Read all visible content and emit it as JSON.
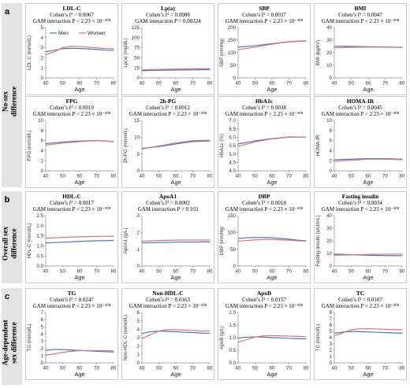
{
  "colors": {
    "men": "#4c79b5",
    "women": "#d9747a",
    "frame": "#bfbfbf",
    "band": "#e3e3e3"
  },
  "legend": {
    "men": "Men",
    "women": "Women"
  },
  "sections": [
    {
      "letter": "a",
      "label_lines": [
        "No-sex",
        "difference"
      ]
    },
    {
      "letter": "b",
      "label_lines": [
        "Overall sex",
        "difference"
      ]
    },
    {
      "letter": "c",
      "label_lines": [
        "Age-dependent",
        "sex difference"
      ]
    }
  ],
  "chart_data": [
    {
      "type": "line",
      "title": "LDL-C",
      "stat1": "Cohen’s f² = 0.0067",
      "stat2": "GAM interaction P < 2.23 × 10⁻³⁰⁸",
      "ylabel": "LDL-C (mmol/L)",
      "xlabel": "Age",
      "xlim": [
        40,
        80
      ],
      "xticks": [
        40,
        50,
        60,
        70,
        80
      ],
      "ylim": [
        0,
        5
      ],
      "yticks": [
        0,
        1,
        2,
        3,
        4,
        5
      ],
      "legend": "top-left",
      "series": [
        {
          "name": "Men",
          "x": [
            40,
            45,
            50,
            55,
            60,
            65,
            70,
            75,
            80
          ],
          "y": [
            2.6,
            2.75,
            2.9,
            2.95,
            2.93,
            2.88,
            2.82,
            2.76,
            2.72
          ]
        },
        {
          "name": "Women",
          "x": [
            40,
            45,
            50,
            55,
            60,
            65,
            70,
            75,
            80
          ],
          "y": [
            2.3,
            2.6,
            3.0,
            3.15,
            3.12,
            3.05,
            2.98,
            2.92,
            2.9
          ]
        }
      ]
    },
    {
      "type": "line",
      "title": "Lp(a)",
      "stat1": "Cohen’s f² = 0.0008",
      "stat2": "GAM interaction P = 0.00324",
      "ylabel": "Lp(a) (mg/dL)",
      "xlabel": "Age",
      "xlim": [
        40,
        80
      ],
      "xticks": [
        40,
        50,
        60,
        70,
        80
      ],
      "ylim": [
        0,
        125
      ],
      "yticks": [
        0,
        25,
        50,
        75,
        100,
        125
      ],
      "series": [
        {
          "name": "Men",
          "x": [
            40,
            50,
            60,
            70,
            80
          ],
          "y": [
            18,
            19,
            19.5,
            20,
            20.5
          ]
        },
        {
          "name": "Women",
          "x": [
            40,
            50,
            60,
            70,
            80
          ],
          "y": [
            20,
            21,
            22,
            22.5,
            23
          ]
        }
      ]
    },
    {
      "type": "line",
      "title": "SBP",
      "stat1": "Cohen’s f² = 0.0037",
      "stat2": "GAM interaction P < 2.23 × 10⁻³⁰⁸",
      "ylabel": "SBP (mmHg)",
      "xlabel": "Age",
      "xlim": [
        40,
        80
      ],
      "xticks": [
        40,
        50,
        60,
        70,
        80
      ],
      "ylim": [
        0,
        200
      ],
      "yticks": [
        0,
        50,
        100,
        150,
        200
      ],
      "series": [
        {
          "name": "Men",
          "x": [
            40,
            45,
            50,
            55,
            60,
            65,
            70,
            75,
            80
          ],
          "y": [
            122,
            125,
            128,
            132,
            136,
            140,
            144,
            146,
            147
          ]
        },
        {
          "name": "Women",
          "x": [
            40,
            45,
            50,
            55,
            60,
            65,
            70,
            75,
            80
          ],
          "y": [
            112,
            117,
            122,
            128,
            134,
            139,
            143,
            145,
            146
          ]
        }
      ]
    },
    {
      "type": "line",
      "title": "BMI",
      "stat1": "Cohen’s f² = 0.0047",
      "stat2": "GAM interaction P < 2.23 × 10⁻³⁰⁸",
      "ylabel": "BMI (kg/m²)",
      "xlabel": "Age",
      "xlim": [
        40,
        80
      ],
      "xticks": [
        40,
        50,
        60,
        70,
        80
      ],
      "ylim": [
        0,
        40
      ],
      "yticks": [
        0,
        10,
        20,
        30,
        40
      ],
      "series": [
        {
          "name": "Men",
          "x": [
            40,
            50,
            60,
            70,
            80
          ],
          "y": [
            25.2,
            25,
            24.8,
            24.6,
            24.3
          ]
        },
        {
          "name": "Women",
          "x": [
            40,
            50,
            60,
            70,
            80
          ],
          "y": [
            24,
            24.3,
            24.5,
            24.4,
            24.2
          ]
        }
      ]
    },
    {
      "type": "line",
      "title": "FPG",
      "stat1": "Cohen’s f² = 0.0019",
      "stat2": "GAM interaction P < 2.23 × 10⁻³⁰⁸",
      "ylabel": "FPG (mmol/L)",
      "xlabel": "Age",
      "xlim": [
        40,
        80
      ],
      "xticks": [
        40,
        50,
        60,
        70,
        80
      ],
      "ylim": [
        0,
        10
      ],
      "yticks": [
        0,
        2,
        4,
        6,
        8,
        10
      ],
      "series": [
        {
          "name": "Men",
          "x": [
            40,
            50,
            60,
            70,
            80
          ],
          "y": [
            5.4,
            5.7,
            5.9,
            6.0,
            5.8
          ]
        },
        {
          "name": "Women",
          "x": [
            40,
            50,
            60,
            70,
            80
          ],
          "y": [
            5.1,
            5.5,
            5.8,
            6.0,
            5.8
          ]
        }
      ]
    },
    {
      "type": "line",
      "title": "2h-PG",
      "stat1": "Cohen’s f² = 0.0012",
      "stat2": "GAM interaction P < 2.23 × 10⁻³⁰⁸",
      "ylabel": "2h-PG (mmol/L)",
      "xlabel": "Age",
      "xlim": [
        40,
        80
      ],
      "xticks": [
        40,
        50,
        60,
        70,
        80
      ],
      "ylim": [
        0,
        15
      ],
      "yticks": [
        0,
        5,
        10,
        15
      ],
      "series": [
        {
          "name": "Men",
          "x": [
            40,
            50,
            60,
            70,
            80
          ],
          "y": [
            6.7,
            7.2,
            8.0,
            8.7,
            8.9
          ]
        },
        {
          "name": "Women",
          "x": [
            40,
            50,
            60,
            70,
            80
          ],
          "y": [
            6.5,
            7.4,
            8.3,
            9.0,
            9.1
          ]
        }
      ]
    },
    {
      "type": "line",
      "title": "HbA1c",
      "stat1": "Cohen’s f² = 0.0038",
      "stat2": "GAM interaction P < 2.23 × 10⁻³⁰⁸",
      "ylabel": "HbA1c (%)",
      "xlabel": "Age",
      "xlim": [
        40,
        80
      ],
      "xticks": [
        40,
        50,
        60,
        70,
        80
      ],
      "ylim": [
        4.0,
        7.0
      ],
      "yticks": [
        4.0,
        4.5,
        5.0,
        5.5,
        6.0,
        6.5,
        7.0
      ],
      "series": [
        {
          "name": "Men",
          "x": [
            40,
            50,
            60,
            70,
            80
          ],
          "y": [
            5.6,
            5.78,
            5.92,
            6.02,
            6.0
          ]
        },
        {
          "name": "Women",
          "x": [
            40,
            50,
            60,
            70,
            80
          ],
          "y": [
            5.45,
            5.72,
            5.9,
            6.0,
            6.0
          ]
        }
      ]
    },
    {
      "type": "line",
      "title": "HOMA-IR",
      "stat1": "Cohen’s f² = 0.0045",
      "stat2": "GAM interaction P < 2.23 × 10⁻³⁰⁸",
      "ylabel": "HOMA-IR",
      "xlabel": "Age",
      "xlim": [
        40,
        80
      ],
      "xticks": [
        40,
        50,
        60,
        70,
        80
      ],
      "ylim": [
        0,
        10
      ],
      "yticks": [
        0,
        2,
        4,
        6,
        8,
        10
      ],
      "series": [
        {
          "name": "Men",
          "x": [
            40,
            50,
            60,
            70,
            80
          ],
          "y": [
            2.2,
            2.3,
            2.4,
            2.4,
            2.3
          ]
        },
        {
          "name": "Women",
          "x": [
            40,
            50,
            60,
            70,
            80
          ],
          "y": [
            1.9,
            2.1,
            2.3,
            2.3,
            2.2
          ]
        }
      ]
    },
    {
      "type": "line",
      "title": "HDL-C",
      "stat1": "Cohen’s f² = 0.0017",
      "stat2": "GAM interaction P < 2.23 × 10⁻³⁰⁸",
      "ylabel": "HDL-C (mmol/L)",
      "xlabel": "Age",
      "xlim": [
        40,
        80
      ],
      "xticks": [
        40,
        50,
        60,
        70,
        80
      ],
      "ylim": [
        0,
        2.5
      ],
      "yticks": [
        0,
        0.5,
        1.0,
        1.5,
        2.0,
        2.5
      ],
      "series": [
        {
          "name": "Men",
          "x": [
            40,
            50,
            60,
            70,
            80
          ],
          "y": [
            1.15,
            1.18,
            1.22,
            1.25,
            1.27
          ]
        },
        {
          "name": "Women",
          "x": [
            40,
            50,
            60,
            70,
            80
          ],
          "y": [
            1.38,
            1.42,
            1.45,
            1.47,
            1.48
          ]
        }
      ]
    },
    {
      "type": "line",
      "title": "ApoA1",
      "stat1": "Cohen’s f² = 0.0002",
      "stat2": "GAM interaction P = 0.103",
      "ylabel": "ApoA1 (g/L)",
      "xlabel": "Age",
      "xlim": [
        40,
        80
      ],
      "xticks": [
        40,
        50,
        60,
        70,
        80
      ],
      "ylim": [
        0,
        3
      ],
      "yticks": [
        0,
        1,
        2,
        3
      ],
      "series": [
        {
          "name": "Men",
          "x": [
            40,
            50,
            60,
            70,
            80
          ],
          "y": [
            1.38,
            1.4,
            1.42,
            1.43,
            1.44
          ]
        },
        {
          "name": "Women",
          "x": [
            40,
            50,
            60,
            70,
            80
          ],
          "y": [
            1.48,
            1.52,
            1.54,
            1.55,
            1.55
          ]
        }
      ]
    },
    {
      "type": "line",
      "title": "DBP",
      "stat1": "Cohen’s f² = 0.0018",
      "stat2": "GAM interaction P < 2.23 × 10⁻³⁰⁸",
      "ylabel": "DBP (mmHg)",
      "xlabel": "Age",
      "xlim": [
        40,
        80
      ],
      "xticks": [
        40,
        50,
        60,
        70,
        80
      ],
      "ylim": [
        0,
        150
      ],
      "yticks": [
        0,
        50,
        100,
        150
      ],
      "series": [
        {
          "name": "Men",
          "x": [
            40,
            45,
            50,
            55,
            60,
            65,
            70,
            75,
            80
          ],
          "y": [
            82,
            84,
            85,
            85,
            84,
            82,
            80,
            77,
            75
          ]
        },
        {
          "name": "Women",
          "x": [
            40,
            45,
            50,
            55,
            60,
            65,
            70,
            75,
            80
          ],
          "y": [
            74,
            76,
            78,
            79,
            79,
            78,
            77,
            75,
            74
          ]
        }
      ]
    },
    {
      "type": "line",
      "title": "Fasting insulin",
      "stat1": "Cohen’s f² = 0.0034",
      "stat2": "GAM interaction P < 2.23 × 10⁻³⁰⁸",
      "ylabel": "Fasting insulin (uIU/mL)",
      "xlabel": "Age",
      "xlim": [
        40,
        80
      ],
      "xticks": [
        40,
        50,
        60,
        70,
        80
      ],
      "ylim": [
        0,
        40
      ],
      "yticks": [
        0,
        10,
        20,
        30,
        40
      ],
      "series": [
        {
          "name": "Men",
          "x": [
            40,
            50,
            60,
            70,
            80
          ],
          "y": [
            9.5,
            9.0,
            8.6,
            8.3,
            8.2
          ]
        },
        {
          "name": "Women",
          "x": [
            40,
            50,
            60,
            70,
            80
          ],
          "y": [
            8.6,
            8.9,
            9.2,
            9.4,
            9.5
          ]
        }
      ]
    },
    {
      "type": "line",
      "title": "TG",
      "stat1": "Cohen’s f² = 0.0247",
      "stat2": "GAM interaction P < 2.23 × 10⁻³⁰⁸",
      "ylabel": "TG (mmol/L)",
      "xlabel": "Age",
      "xlim": [
        40,
        80
      ],
      "xticks": [
        40,
        50,
        60,
        70,
        80
      ],
      "ylim": [
        0,
        7
      ],
      "yticks": [
        0,
        1,
        2,
        3,
        4,
        5,
        6,
        7
      ],
      "series": [
        {
          "name": "Men",
          "x": [
            40,
            45,
            50,
            55,
            60,
            65,
            70,
            75,
            80
          ],
          "y": [
            1.75,
            1.85,
            1.85,
            1.78,
            1.72,
            1.66,
            1.6,
            1.55,
            1.5
          ]
        },
        {
          "name": "Women",
          "x": [
            40,
            45,
            50,
            55,
            60,
            65,
            70,
            75,
            80
          ],
          "y": [
            1.05,
            1.25,
            1.45,
            1.6,
            1.68,
            1.7,
            1.7,
            1.68,
            1.66
          ]
        }
      ]
    },
    {
      "type": "line",
      "title": "Non-HDL-C",
      "stat1": "Cohen’s f² = 0.0163",
      "stat2": "GAM interaction P < 2.23 × 10⁻³⁰⁸",
      "ylabel": "Non-HDL-C (mmol/L)",
      "xlabel": "Age",
      "xlim": [
        40,
        80
      ],
      "xticks": [
        40,
        50,
        60,
        70,
        80
      ],
      "ylim": [
        0,
        6
      ],
      "yticks": [
        0,
        1,
        2,
        3,
        4,
        5,
        6
      ],
      "series": [
        {
          "name": "Men",
          "x": [
            40,
            45,
            50,
            55,
            60,
            65,
            70,
            75,
            80
          ],
          "y": [
            3.5,
            3.7,
            3.78,
            3.75,
            3.7,
            3.65,
            3.6,
            3.55,
            3.5
          ]
        },
        {
          "name": "Women",
          "x": [
            40,
            45,
            50,
            55,
            60,
            65,
            70,
            75,
            80
          ],
          "y": [
            2.9,
            3.35,
            3.8,
            3.95,
            3.95,
            3.9,
            3.85,
            3.8,
            3.78
          ]
        }
      ]
    },
    {
      "type": "line",
      "title": "ApoB",
      "stat1": "Cohen’s f² = 0.0157",
      "stat2": "GAM interaction P < 2.23 × 10⁻³⁰⁸",
      "ylabel": "ApoB (g/L)",
      "xlabel": "Age",
      "xlim": [
        40,
        80
      ],
      "xticks": [
        40,
        50,
        60,
        70,
        80
      ],
      "ylim": [
        0.0,
        2.0
      ],
      "yticks": [
        0.0,
        0.5,
        1.0,
        1.5,
        2.0
      ],
      "series": [
        {
          "name": "Men",
          "x": [
            40,
            45,
            50,
            55,
            60,
            65,
            70,
            75,
            80
          ],
          "y": [
            0.98,
            1.02,
            1.03,
            1.02,
            1.0,
            0.99,
            0.97,
            0.96,
            0.95
          ]
        },
        {
          "name": "Women",
          "x": [
            40,
            45,
            50,
            55,
            60,
            65,
            70,
            75,
            80
          ],
          "y": [
            0.82,
            0.92,
            1.02,
            1.07,
            1.08,
            1.07,
            1.06,
            1.05,
            1.04
          ]
        }
      ]
    },
    {
      "type": "line",
      "title": "TC",
      "stat1": "Cohen’s f² = 0.0107",
      "stat2": "GAM interaction P < 2.23 × 10⁻³⁰⁸",
      "ylabel": "TC (mmol/L)",
      "xlabel": "Age",
      "xlim": [
        40,
        80
      ],
      "xticks": [
        40,
        50,
        60,
        70,
        80
      ],
      "ylim": [
        0,
        8
      ],
      "yticks": [
        0,
        1,
        2,
        3,
        4,
        5,
        6,
        7,
        8
      ],
      "series": [
        {
          "name": "Men",
          "x": [
            40,
            45,
            50,
            55,
            60,
            65,
            70,
            75,
            80
          ],
          "y": [
            4.7,
            4.88,
            4.98,
            4.95,
            4.9,
            4.85,
            4.8,
            4.75,
            4.7
          ]
        },
        {
          "name": "Women",
          "x": [
            40,
            45,
            50,
            55,
            60,
            65,
            70,
            75,
            80
          ],
          "y": [
            4.3,
            4.75,
            5.25,
            5.4,
            5.42,
            5.38,
            5.32,
            5.28,
            5.25
          ]
        }
      ]
    }
  ]
}
